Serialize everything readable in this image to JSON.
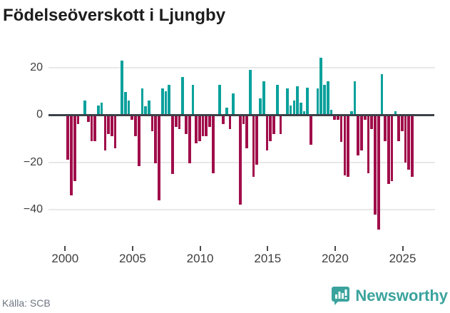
{
  "title": "Födelseöverskott i Ljungby",
  "source": "Källa: SCB",
  "logo": {
    "text": "Newsworthy",
    "icon": "bar-chart-speech-bubble-icon"
  },
  "colors": {
    "positive": "#0aa19c",
    "negative": "#a00d4a",
    "zero_line": "#3b4248",
    "grid": "#e8e8e8",
    "axis_text": "#3e3e3e",
    "source_text": "#6d7680",
    "logo": "#3ba39d",
    "title": "#1d1d1d",
    "background": "#ffffff"
  },
  "chart_data": {
    "type": "bar",
    "title": "Födelseöverskott i Ljungby",
    "series_name": "Födelseöverskott per kvartal",
    "unit": "quarterly",
    "start_period": "2000Q1",
    "end_period": "2025Q3",
    "x_ticks": [
      2000,
      2005,
      2010,
      2015,
      2020,
      2025
    ],
    "y_ticks": [
      20,
      0,
      -20,
      -40
    ],
    "ylim": [
      -52,
      26
    ],
    "grid": "horizontal",
    "legend": "none",
    "values": [
      -19,
      -34,
      -28,
      -4,
      0,
      6,
      -3,
      -11,
      -11,
      4,
      5,
      -15,
      -8,
      -9,
      -14,
      0,
      23,
      9.5,
      6,
      -2,
      -9,
      -21.5,
      11,
      3.5,
      6,
      -7,
      -20.5,
      -36,
      11,
      10,
      12.5,
      -25,
      -5,
      -6,
      16,
      -8,
      -20.5,
      12.5,
      -12,
      -11,
      -9,
      -9,
      -5,
      -24.5,
      0,
      12.5,
      -4,
      3,
      -6,
      9,
      0,
      -38,
      -4,
      -14,
      19,
      -26,
      -21,
      7,
      14,
      -15,
      -11,
      -8,
      12.5,
      -8,
      0,
      11,
      4,
      6,
      12,
      5,
      1.5,
      11.5,
      -12.5,
      0,
      11,
      24,
      12.5,
      14,
      2,
      -2,
      -2,
      -11.5,
      -25.5,
      -26,
      1.5,
      14,
      -17,
      -15,
      -2,
      -24.5,
      -6,
      -42,
      -48.5,
      17,
      -11,
      -29,
      -28,
      1.5,
      -11,
      -7,
      -20,
      -23,
      -26
    ]
  }
}
